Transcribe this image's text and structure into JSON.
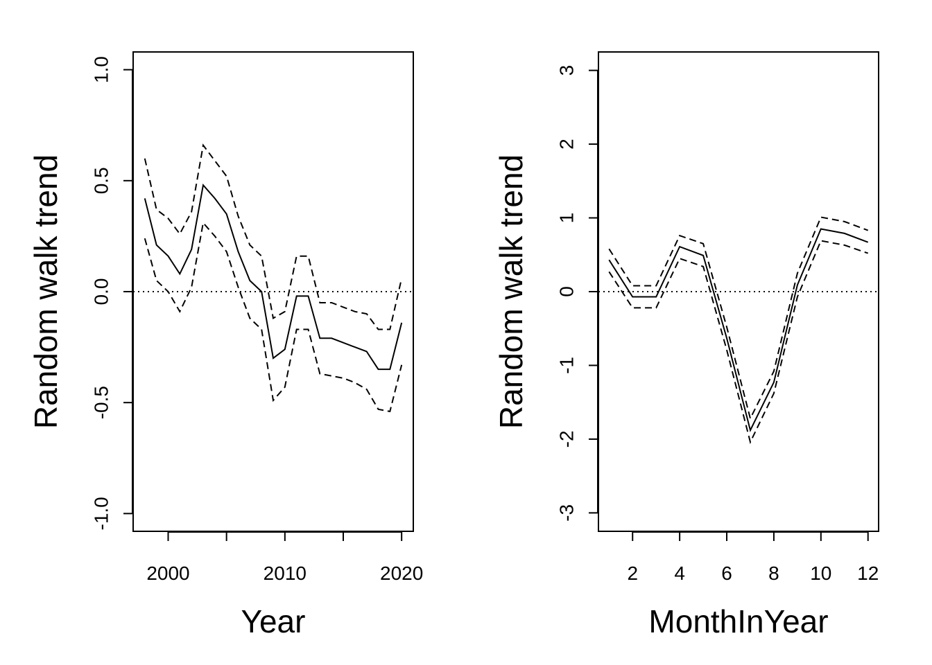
{
  "chart_data": [
    {
      "type": "line",
      "xlabel": "Year",
      "ylabel": "Random walk trend",
      "xlim": [
        1997,
        2021
      ],
      "ylim": [
        -1.08,
        1.08
      ],
      "xticks": [
        2000,
        2005,
        2010,
        2015,
        2020
      ],
      "xtick_labels": [
        "2000",
        "",
        "2010",
        "",
        "2020"
      ],
      "yticks": [
        -1.0,
        -0.5,
        0.0,
        0.5,
        1.0
      ],
      "ytick_labels": [
        "-1.0",
        "-0.5",
        "0.0",
        "0.5",
        "1.0"
      ],
      "reference_line": 0,
      "grid": false,
      "x": [
        1998,
        1999,
        2000,
        2001,
        2002,
        2003,
        2004,
        2005,
        2006,
        2007,
        2008,
        2009,
        2010,
        2011,
        2012,
        2013,
        2014,
        2015,
        2016,
        2017,
        2018,
        2019,
        2020
      ],
      "series": [
        {
          "style": "solid",
          "values": [
            0.42,
            0.21,
            0.16,
            0.08,
            0.19,
            0.48,
            0.42,
            0.35,
            0.18,
            0.05,
            0.0,
            -0.3,
            -0.26,
            -0.02,
            -0.02,
            -0.21,
            -0.21,
            -0.23,
            -0.25,
            -0.27,
            -0.35,
            -0.35,
            -0.14
          ]
        },
        {
          "style": "dashed",
          "values": [
            0.6,
            0.37,
            0.33,
            0.26,
            0.36,
            0.66,
            0.59,
            0.52,
            0.34,
            0.21,
            0.16,
            -0.12,
            -0.09,
            0.16,
            0.16,
            -0.05,
            -0.05,
            -0.07,
            -0.09,
            -0.1,
            -0.17,
            -0.17,
            0.06
          ]
        },
        {
          "style": "dashed",
          "values": [
            0.24,
            0.05,
            0.0,
            -0.09,
            0.02,
            0.31,
            0.25,
            0.18,
            0.02,
            -0.12,
            -0.17,
            -0.49,
            -0.43,
            -0.17,
            -0.17,
            -0.37,
            -0.38,
            -0.39,
            -0.41,
            -0.44,
            -0.53,
            -0.54,
            -0.33
          ]
        }
      ]
    },
    {
      "type": "line",
      "xlabel": "MonthInYear",
      "ylabel": "Random walk trend",
      "xlim": [
        0.55,
        12.45
      ],
      "ylim": [
        -3.25,
        3.25
      ],
      "xticks": [
        2,
        4,
        6,
        8,
        10,
        12
      ],
      "xtick_labels": [
        "2",
        "4",
        "6",
        "8",
        "10",
        "12"
      ],
      "yticks": [
        -3,
        -2,
        -1,
        0,
        1,
        2,
        3
      ],
      "ytick_labels": [
        "-3",
        "-2",
        "-1",
        "0",
        "1",
        "2",
        "3"
      ],
      "reference_line": 0,
      "grid": false,
      "x": [
        1,
        2,
        3,
        4,
        5,
        6,
        7,
        8,
        9,
        10,
        11,
        12
      ],
      "series": [
        {
          "style": "solid",
          "values": [
            0.43,
            -0.07,
            -0.07,
            0.61,
            0.49,
            -0.63,
            -1.88,
            -1.23,
            0.09,
            0.85,
            0.79,
            0.67
          ]
        },
        {
          "style": "dashed",
          "values": [
            0.58,
            0.08,
            0.08,
            0.76,
            0.65,
            -0.48,
            -1.72,
            -1.08,
            0.25,
            1.01,
            0.95,
            0.83
          ]
        },
        {
          "style": "dashed",
          "values": [
            0.27,
            -0.22,
            -0.22,
            0.45,
            0.34,
            -0.79,
            -2.04,
            -1.38,
            -0.07,
            0.69,
            0.63,
            0.52
          ]
        }
      ]
    }
  ]
}
